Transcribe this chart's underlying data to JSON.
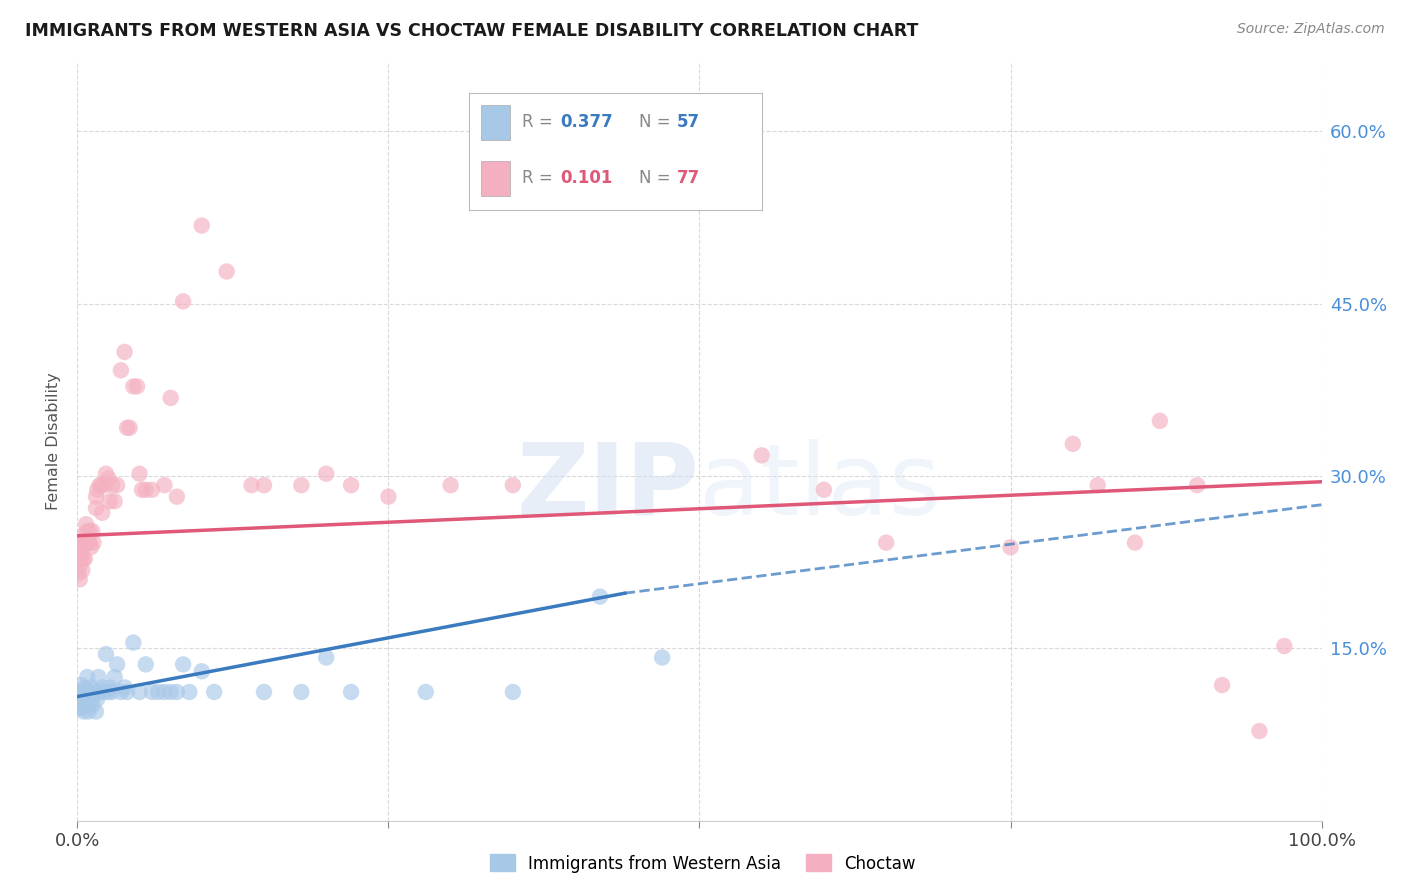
{
  "title": "IMMIGRANTS FROM WESTERN ASIA VS CHOCTAW FEMALE DISABILITY CORRELATION CHART",
  "source": "Source: ZipAtlas.com",
  "ylabel": "Female Disability",
  "ytick_values": [
    0.0,
    0.15,
    0.3,
    0.45,
    0.6
  ],
  "ytick_labels": [
    "",
    "15.0%",
    "30.0%",
    "45.0%",
    "60.0%"
  ],
  "xmin": 0.0,
  "xmax": 1.0,
  "ymin": 0.04,
  "ymax": 0.66,
  "watermark_zip": "ZIP",
  "watermark_atlas": "atlas",
  "blue_color": "#a8c8e8",
  "pink_color": "#f4b0c0",
  "blue_line_color": "#3a7abf",
  "pink_line_color": "#e05878",
  "blue_line_solid_end": 0.44,
  "blue_line_y_start": 0.108,
  "blue_line_y_end_solid": 0.198,
  "blue_line_y_end_full": 0.275,
  "pink_line_y_start": 0.248,
  "pink_line_y_end": 0.295,
  "blue_scatter": [
    [
      0.001,
      0.108
    ],
    [
      0.002,
      0.098
    ],
    [
      0.002,
      0.112
    ],
    [
      0.003,
      0.105
    ],
    [
      0.003,
      0.118
    ],
    [
      0.004,
      0.098
    ],
    [
      0.004,
      0.108
    ],
    [
      0.005,
      0.095
    ],
    [
      0.005,
      0.112
    ],
    [
      0.006,
      0.1
    ],
    [
      0.006,
      0.115
    ],
    [
      0.007,
      0.106
    ],
    [
      0.007,
      0.112
    ],
    [
      0.008,
      0.1
    ],
    [
      0.008,
      0.125
    ],
    [
      0.009,
      0.095
    ],
    [
      0.01,
      0.105
    ],
    [
      0.01,
      0.112
    ],
    [
      0.011,
      0.116
    ],
    [
      0.012,
      0.1
    ],
    [
      0.013,
      0.108
    ],
    [
      0.014,
      0.112
    ],
    [
      0.015,
      0.095
    ],
    [
      0.016,
      0.106
    ],
    [
      0.017,
      0.125
    ],
    [
      0.018,
      0.112
    ],
    [
      0.02,
      0.116
    ],
    [
      0.022,
      0.112
    ],
    [
      0.023,
      0.145
    ],
    [
      0.025,
      0.112
    ],
    [
      0.026,
      0.116
    ],
    [
      0.028,
      0.112
    ],
    [
      0.03,
      0.125
    ],
    [
      0.032,
      0.136
    ],
    [
      0.035,
      0.112
    ],
    [
      0.038,
      0.116
    ],
    [
      0.04,
      0.112
    ],
    [
      0.045,
      0.155
    ],
    [
      0.05,
      0.112
    ],
    [
      0.055,
      0.136
    ],
    [
      0.06,
      0.112
    ],
    [
      0.065,
      0.112
    ],
    [
      0.07,
      0.112
    ],
    [
      0.075,
      0.112
    ],
    [
      0.08,
      0.112
    ],
    [
      0.085,
      0.136
    ],
    [
      0.09,
      0.112
    ],
    [
      0.1,
      0.13
    ],
    [
      0.11,
      0.112
    ],
    [
      0.15,
      0.112
    ],
    [
      0.18,
      0.112
    ],
    [
      0.2,
      0.142
    ],
    [
      0.22,
      0.112
    ],
    [
      0.28,
      0.112
    ],
    [
      0.35,
      0.112
    ],
    [
      0.42,
      0.195
    ],
    [
      0.47,
      0.142
    ]
  ],
  "pink_scatter": [
    [
      0.001,
      0.112
    ],
    [
      0.001,
      0.235
    ],
    [
      0.001,
      0.215
    ],
    [
      0.002,
      0.24
    ],
    [
      0.002,
      0.21
    ],
    [
      0.002,
      0.222
    ],
    [
      0.003,
      0.228
    ],
    [
      0.003,
      0.242
    ],
    [
      0.003,
      0.232
    ],
    [
      0.004,
      0.218
    ],
    [
      0.004,
      0.238
    ],
    [
      0.004,
      0.242
    ],
    [
      0.004,
      0.248
    ],
    [
      0.005,
      0.228
    ],
    [
      0.005,
      0.242
    ],
    [
      0.006,
      0.228
    ],
    [
      0.006,
      0.242
    ],
    [
      0.007,
      0.242
    ],
    [
      0.007,
      0.258
    ],
    [
      0.008,
      0.242
    ],
    [
      0.008,
      0.252
    ],
    [
      0.009,
      0.242
    ],
    [
      0.01,
      0.242
    ],
    [
      0.01,
      0.252
    ],
    [
      0.011,
      0.238
    ],
    [
      0.012,
      0.252
    ],
    [
      0.013,
      0.242
    ],
    [
      0.015,
      0.272
    ],
    [
      0.015,
      0.282
    ],
    [
      0.016,
      0.288
    ],
    [
      0.018,
      0.292
    ],
    [
      0.019,
      0.292
    ],
    [
      0.02,
      0.268
    ],
    [
      0.022,
      0.292
    ],
    [
      0.023,
      0.302
    ],
    [
      0.025,
      0.298
    ],
    [
      0.026,
      0.278
    ],
    [
      0.028,
      0.292
    ],
    [
      0.03,
      0.278
    ],
    [
      0.032,
      0.292
    ],
    [
      0.035,
      0.392
    ],
    [
      0.038,
      0.408
    ],
    [
      0.04,
      0.342
    ],
    [
      0.042,
      0.342
    ],
    [
      0.045,
      0.378
    ],
    [
      0.048,
      0.378
    ],
    [
      0.05,
      0.302
    ],
    [
      0.052,
      0.288
    ],
    [
      0.055,
      0.288
    ],
    [
      0.06,
      0.288
    ],
    [
      0.07,
      0.292
    ],
    [
      0.075,
      0.368
    ],
    [
      0.08,
      0.282
    ],
    [
      0.085,
      0.452
    ],
    [
      0.1,
      0.518
    ],
    [
      0.12,
      0.478
    ],
    [
      0.14,
      0.292
    ],
    [
      0.15,
      0.292
    ],
    [
      0.18,
      0.292
    ],
    [
      0.2,
      0.302
    ],
    [
      0.22,
      0.292
    ],
    [
      0.25,
      0.282
    ],
    [
      0.3,
      0.292
    ],
    [
      0.35,
      0.292
    ],
    [
      0.55,
      0.318
    ],
    [
      0.6,
      0.288
    ],
    [
      0.65,
      0.242
    ],
    [
      0.75,
      0.238
    ],
    [
      0.8,
      0.328
    ],
    [
      0.82,
      0.292
    ],
    [
      0.85,
      0.242
    ],
    [
      0.87,
      0.348
    ],
    [
      0.9,
      0.292
    ],
    [
      0.92,
      0.118
    ],
    [
      0.95,
      0.078
    ],
    [
      0.97,
      0.152
    ]
  ],
  "background_color": "#ffffff",
  "grid_color": "#d0d0d0"
}
